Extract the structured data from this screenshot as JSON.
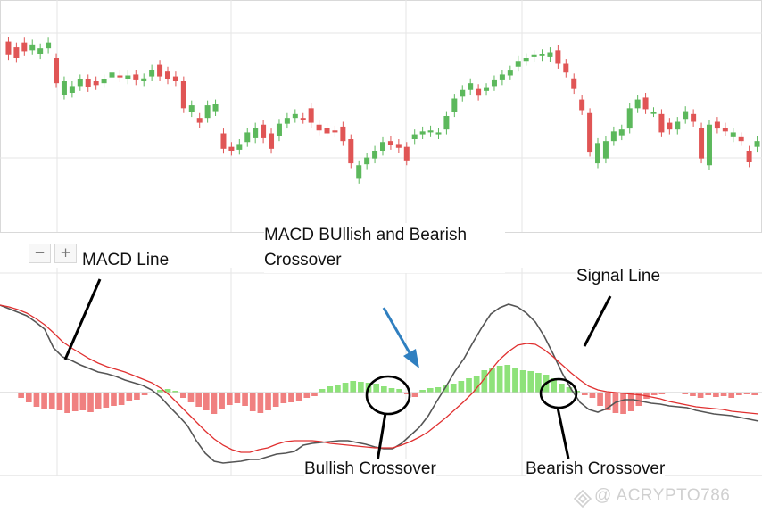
{
  "title": "MACD BUllish and Bearish Crossover",
  "annotations": {
    "macd_line": "MACD Line",
    "signal_line": "Signal Line",
    "bullish": "Bullish Crossover",
    "bearish": "Bearish Crossover"
  },
  "zoom_controls": {
    "minus": "−",
    "plus": "+"
  },
  "watermark": "@ ACRYPTO786",
  "colors": {
    "bullish": "#5cb85c",
    "bearish": "#e05555",
    "hist_positive": "#8ee27a",
    "hist_negative": "#f08080",
    "macd_line": "#555555",
    "signal_line": "#e03030",
    "arrow": "#2f7fc0",
    "grid": "#e6e6e6"
  },
  "chart_data": [
    {
      "type": "candlestick",
      "title": "",
      "grid": true,
      "ylim": [
        0,
        240
      ],
      "candles": [
        {
          "o": 197,
          "c": 183
        },
        {
          "o": 191,
          "c": 180
        },
        {
          "o": 196,
          "c": 187
        },
        {
          "o": 188,
          "c": 194
        },
        {
          "o": 184,
          "c": 190
        },
        {
          "o": 190,
          "c": 196
        },
        {
          "o": 180,
          "c": 154
        },
        {
          "o": 142,
          "c": 156
        },
        {
          "o": 144,
          "c": 151
        },
        {
          "o": 151,
          "c": 158
        },
        {
          "o": 158,
          "c": 150
        },
        {
          "o": 156,
          "c": 152
        },
        {
          "o": 154,
          "c": 158
        },
        {
          "o": 160,
          "c": 165
        },
        {
          "o": 162,
          "c": 160
        },
        {
          "o": 158,
          "c": 162
        },
        {
          "o": 163,
          "c": 157
        },
        {
          "o": 156,
          "c": 159
        },
        {
          "o": 161,
          "c": 168
        },
        {
          "o": 173,
          "c": 161
        },
        {
          "o": 166,
          "c": 158
        },
        {
          "o": 161,
          "c": 156
        },
        {
          "o": 156,
          "c": 128
        },
        {
          "o": 124,
          "c": 131
        },
        {
          "o": 118,
          "c": 113
        },
        {
          "o": 118,
          "c": 131
        },
        {
          "o": 125,
          "c": 132
        },
        {
          "o": 102,
          "c": 86
        },
        {
          "o": 88,
          "c": 84
        },
        {
          "o": 85,
          "c": 91
        },
        {
          "o": 93,
          "c": 103
        },
        {
          "o": 97,
          "c": 108
        },
        {
          "o": 111,
          "c": 97
        },
        {
          "o": 102,
          "c": 86
        },
        {
          "o": 99,
          "c": 112
        },
        {
          "o": 112,
          "c": 118
        },
        {
          "o": 118,
          "c": 122
        },
        {
          "o": 118,
          "c": 117
        },
        {
          "o": 128,
          "c": 113
        },
        {
          "o": 111,
          "c": 105
        },
        {
          "o": 108,
          "c": 102
        },
        {
          "o": 105,
          "c": 103
        },
        {
          "o": 109,
          "c": 94
        },
        {
          "o": 96,
          "c": 71
        },
        {
          "o": 55,
          "c": 69
        },
        {
          "o": 70,
          "c": 77
        },
        {
          "o": 76,
          "c": 84
        },
        {
          "o": 84,
          "c": 93
        },
        {
          "o": 94,
          "c": 90
        },
        {
          "o": 91,
          "c": 87
        },
        {
          "o": 88,
          "c": 74
        },
        {
          "o": 96,
          "c": 101
        },
        {
          "o": 101,
          "c": 104
        },
        {
          "o": 103,
          "c": 105
        },
        {
          "o": 101,
          "c": 103
        },
        {
          "o": 106,
          "c": 120
        },
        {
          "o": 124,
          "c": 138
        },
        {
          "o": 140,
          "c": 147
        },
        {
          "o": 147,
          "c": 154
        },
        {
          "o": 148,
          "c": 141
        },
        {
          "o": 146,
          "c": 149
        },
        {
          "o": 151,
          "c": 157
        },
        {
          "o": 157,
          "c": 163
        },
        {
          "o": 162,
          "c": 167
        },
        {
          "o": 171,
          "c": 177
        },
        {
          "o": 177,
          "c": 180
        },
        {
          "o": 181,
          "c": 183
        },
        {
          "o": 182,
          "c": 184
        },
        {
          "o": 181,
          "c": 186
        },
        {
          "o": 188,
          "c": 174
        },
        {
          "o": 174,
          "c": 165
        },
        {
          "o": 159,
          "c": 148
        },
        {
          "o": 137,
          "c": 126
        },
        {
          "o": 123,
          "c": 83
        },
        {
          "o": 71,
          "c": 92
        },
        {
          "o": 76,
          "c": 94
        },
        {
          "o": 94,
          "c": 104
        },
        {
          "o": 100,
          "c": 106
        },
        {
          "o": 107,
          "c": 128
        },
        {
          "o": 128,
          "c": 137
        },
        {
          "o": 139,
          "c": 127
        },
        {
          "o": 124,
          "c": 124
        },
        {
          "o": 122,
          "c": 103
        },
        {
          "o": 113,
          "c": 106
        },
        {
          "o": 106,
          "c": 114
        },
        {
          "o": 117,
          "c": 125
        },
        {
          "o": 122,
          "c": 114
        },
        {
          "o": 108,
          "c": 76
        },
        {
          "o": 69,
          "c": 111
        },
        {
          "o": 114,
          "c": 107
        },
        {
          "o": 108,
          "c": 104
        },
        {
          "o": 98,
          "c": 103
        },
        {
          "o": 98,
          "c": 94
        },
        {
          "o": 84,
          "c": 72
        },
        {
          "o": 88,
          "c": 94
        }
      ]
    },
    {
      "type": "line",
      "title": "MACD BUllish and Bearish Crossover",
      "grid": true,
      "ylim": [
        -100,
        100
      ],
      "series": [
        {
          "name": "MACD Line",
          "x": [
            0,
            10,
            20,
            30,
            40,
            50,
            60,
            70,
            80,
            90,
            100,
            110,
            120,
            130,
            140,
            150,
            160,
            170,
            180,
            190,
            200,
            210,
            220,
            230,
            240,
            250,
            260,
            270,
            280,
            290,
            300,
            310,
            320,
            330,
            340,
            350,
            360,
            370,
            380,
            390,
            400,
            410,
            420,
            430,
            440,
            450,
            460,
            470,
            480,
            490,
            500,
            510,
            520,
            530,
            540,
            550,
            560,
            570,
            580,
            590,
            600,
            610,
            620,
            630,
            640,
            650,
            660,
            670,
            680,
            690,
            700,
            710,
            720,
            730,
            740,
            750,
            760,
            770,
            780,
            790,
            800,
            810,
            820,
            830,
            840,
            850
          ],
          "values": [
            98,
            94,
            90,
            86,
            79,
            71,
            50,
            40,
            36,
            31,
            27,
            23,
            21,
            18,
            14,
            11,
            8,
            3,
            -5,
            -16,
            -26,
            -37,
            -54,
            -68,
            -77,
            -79,
            -78,
            -77,
            -75,
            -75,
            -72,
            -69,
            -68,
            -66,
            -59,
            -57,
            -56,
            -55,
            -54,
            -54,
            -56,
            -58,
            -61,
            -63,
            -63,
            -57,
            -48,
            -39,
            -26,
            -9,
            7,
            24,
            38,
            56,
            73,
            88,
            95,
            99,
            96,
            89,
            79,
            63,
            43,
            22,
            4,
            -11,
            -19,
            -22,
            -18,
            -11,
            -8,
            -8,
            -10,
            -12,
            -13,
            -15,
            -16,
            -17,
            -20,
            -22,
            -24,
            -25,
            -26,
            -28,
            -30,
            -32
          ]
        },
        {
          "name": "Signal Line",
          "x": [
            0,
            10,
            20,
            30,
            40,
            50,
            60,
            70,
            80,
            90,
            100,
            110,
            120,
            130,
            140,
            150,
            160,
            170,
            180,
            190,
            200,
            210,
            220,
            230,
            240,
            250,
            260,
            270,
            280,
            290,
            300,
            310,
            320,
            330,
            340,
            350,
            360,
            370,
            380,
            390,
            400,
            410,
            420,
            430,
            440,
            450,
            460,
            470,
            480,
            490,
            500,
            510,
            520,
            530,
            540,
            550,
            560,
            570,
            580,
            590,
            600,
            610,
            620,
            630,
            640,
            650,
            660,
            670,
            680,
            690,
            700,
            710,
            720,
            730,
            740,
            750,
            760,
            770,
            780,
            790,
            800,
            810,
            820,
            830,
            840,
            850
          ],
          "values": [
            98,
            96,
            93,
            89,
            83,
            76,
            67,
            57,
            50,
            44,
            38,
            33,
            29,
            26,
            23,
            19,
            15,
            11,
            5,
            -3,
            -13,
            -23,
            -33,
            -43,
            -52,
            -59,
            -64,
            -67,
            -67,
            -64,
            -62,
            -58,
            -55,
            -54,
            -54,
            -54,
            -55,
            -57,
            -58,
            -59,
            -60,
            -61,
            -62,
            -62,
            -62,
            -59,
            -55,
            -50,
            -44,
            -36,
            -28,
            -19,
            -10,
            0,
            12,
            25,
            37,
            46,
            53,
            55,
            54,
            48,
            40,
            31,
            22,
            14,
            7,
            3,
            1,
            0,
            -1,
            -2,
            -3,
            -5,
            -7,
            -10,
            -12,
            -14,
            -16,
            -17,
            -18,
            -19,
            -21,
            -22,
            -23,
            -24
          ]
        }
      ],
      "histogram": [
        0.5,
        0.5,
        -6,
        -11,
        -16,
        -19,
        -19,
        -20,
        -23,
        -21,
        -20,
        -22,
        -18,
        -17,
        -15,
        -14,
        -10,
        -8,
        -3,
        0,
        3,
        4,
        2,
        -6,
        -11,
        -16,
        -20,
        -24,
        -18,
        -14,
        -12,
        -15,
        -21,
        -23,
        -20,
        -16,
        -12,
        -11,
        -9,
        -6,
        -4,
        4,
        7,
        9,
        11,
        13,
        12,
        11,
        10,
        7,
        5,
        4,
        -2,
        -5,
        3,
        5,
        6,
        8,
        10,
        13,
        16,
        19,
        25,
        27,
        30,
        31,
        28,
        25,
        24,
        22,
        20,
        16,
        10,
        6,
        2,
        -3,
        -6,
        -15,
        -20,
        -23,
        -24,
        -21,
        -15,
        -7,
        -3,
        -2,
        0,
        -1,
        -2,
        -4,
        -6,
        -3,
        -5,
        -4,
        -6,
        -3,
        -2,
        -3
      ]
    }
  ]
}
